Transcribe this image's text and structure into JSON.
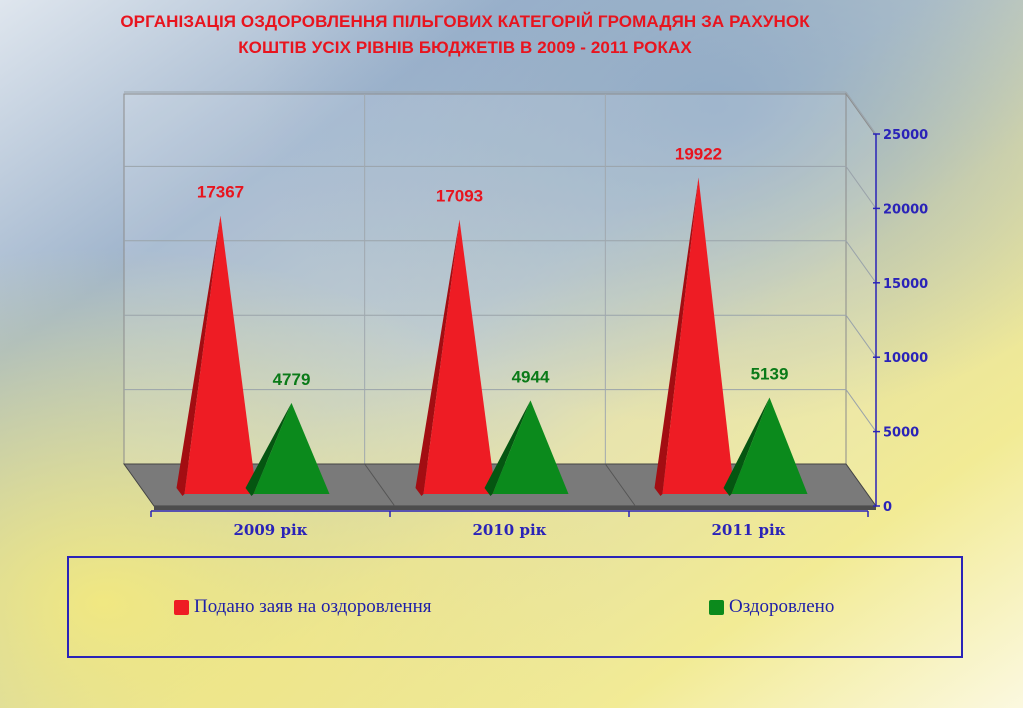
{
  "title_line1": "ОРГАНІЗАЦІЯ ОЗДОРОВЛЕННЯ  ПІЛЬГОВИХ КАТЕГОРІЙ  ГРОМАДЯН ЗА РАХУНОК",
  "title_line2": "КОШТІВ УСІХ РІВНІВ БЮДЖЕТІВ  В 2009 - 2011 РОКАХ",
  "colors": {
    "series_red": "#ee1c24",
    "series_green": "#0b8a1c",
    "axis": "#2a23b8",
    "floor": "#7a7a7a"
  },
  "chart_data": {
    "type": "bar",
    "style": "3d-cone",
    "categories": [
      "2009 рік",
      "2010 рік",
      "2011 рік"
    ],
    "series": [
      {
        "name": "Подано заяв на оздоровлення",
        "values": [
          17367,
          17093,
          19922
        ],
        "labels": [
          "17367",
          "17093",
          "19922"
        ]
      },
      {
        "name": "Оздоровлено",
        "values": [
          4779,
          4944,
          5139
        ],
        "labels": [
          "4779",
          "4944",
          "5139"
        ]
      }
    ],
    "y_ticks": [
      0,
      5000,
      10000,
      15000,
      20000,
      25000
    ],
    "y_tick_labels": [
      "0",
      "5000",
      "10000",
      "15000",
      "20000",
      "25000"
    ],
    "ylim": [
      0,
      25000
    ],
    "grid": true,
    "legend_position": "bottom"
  }
}
